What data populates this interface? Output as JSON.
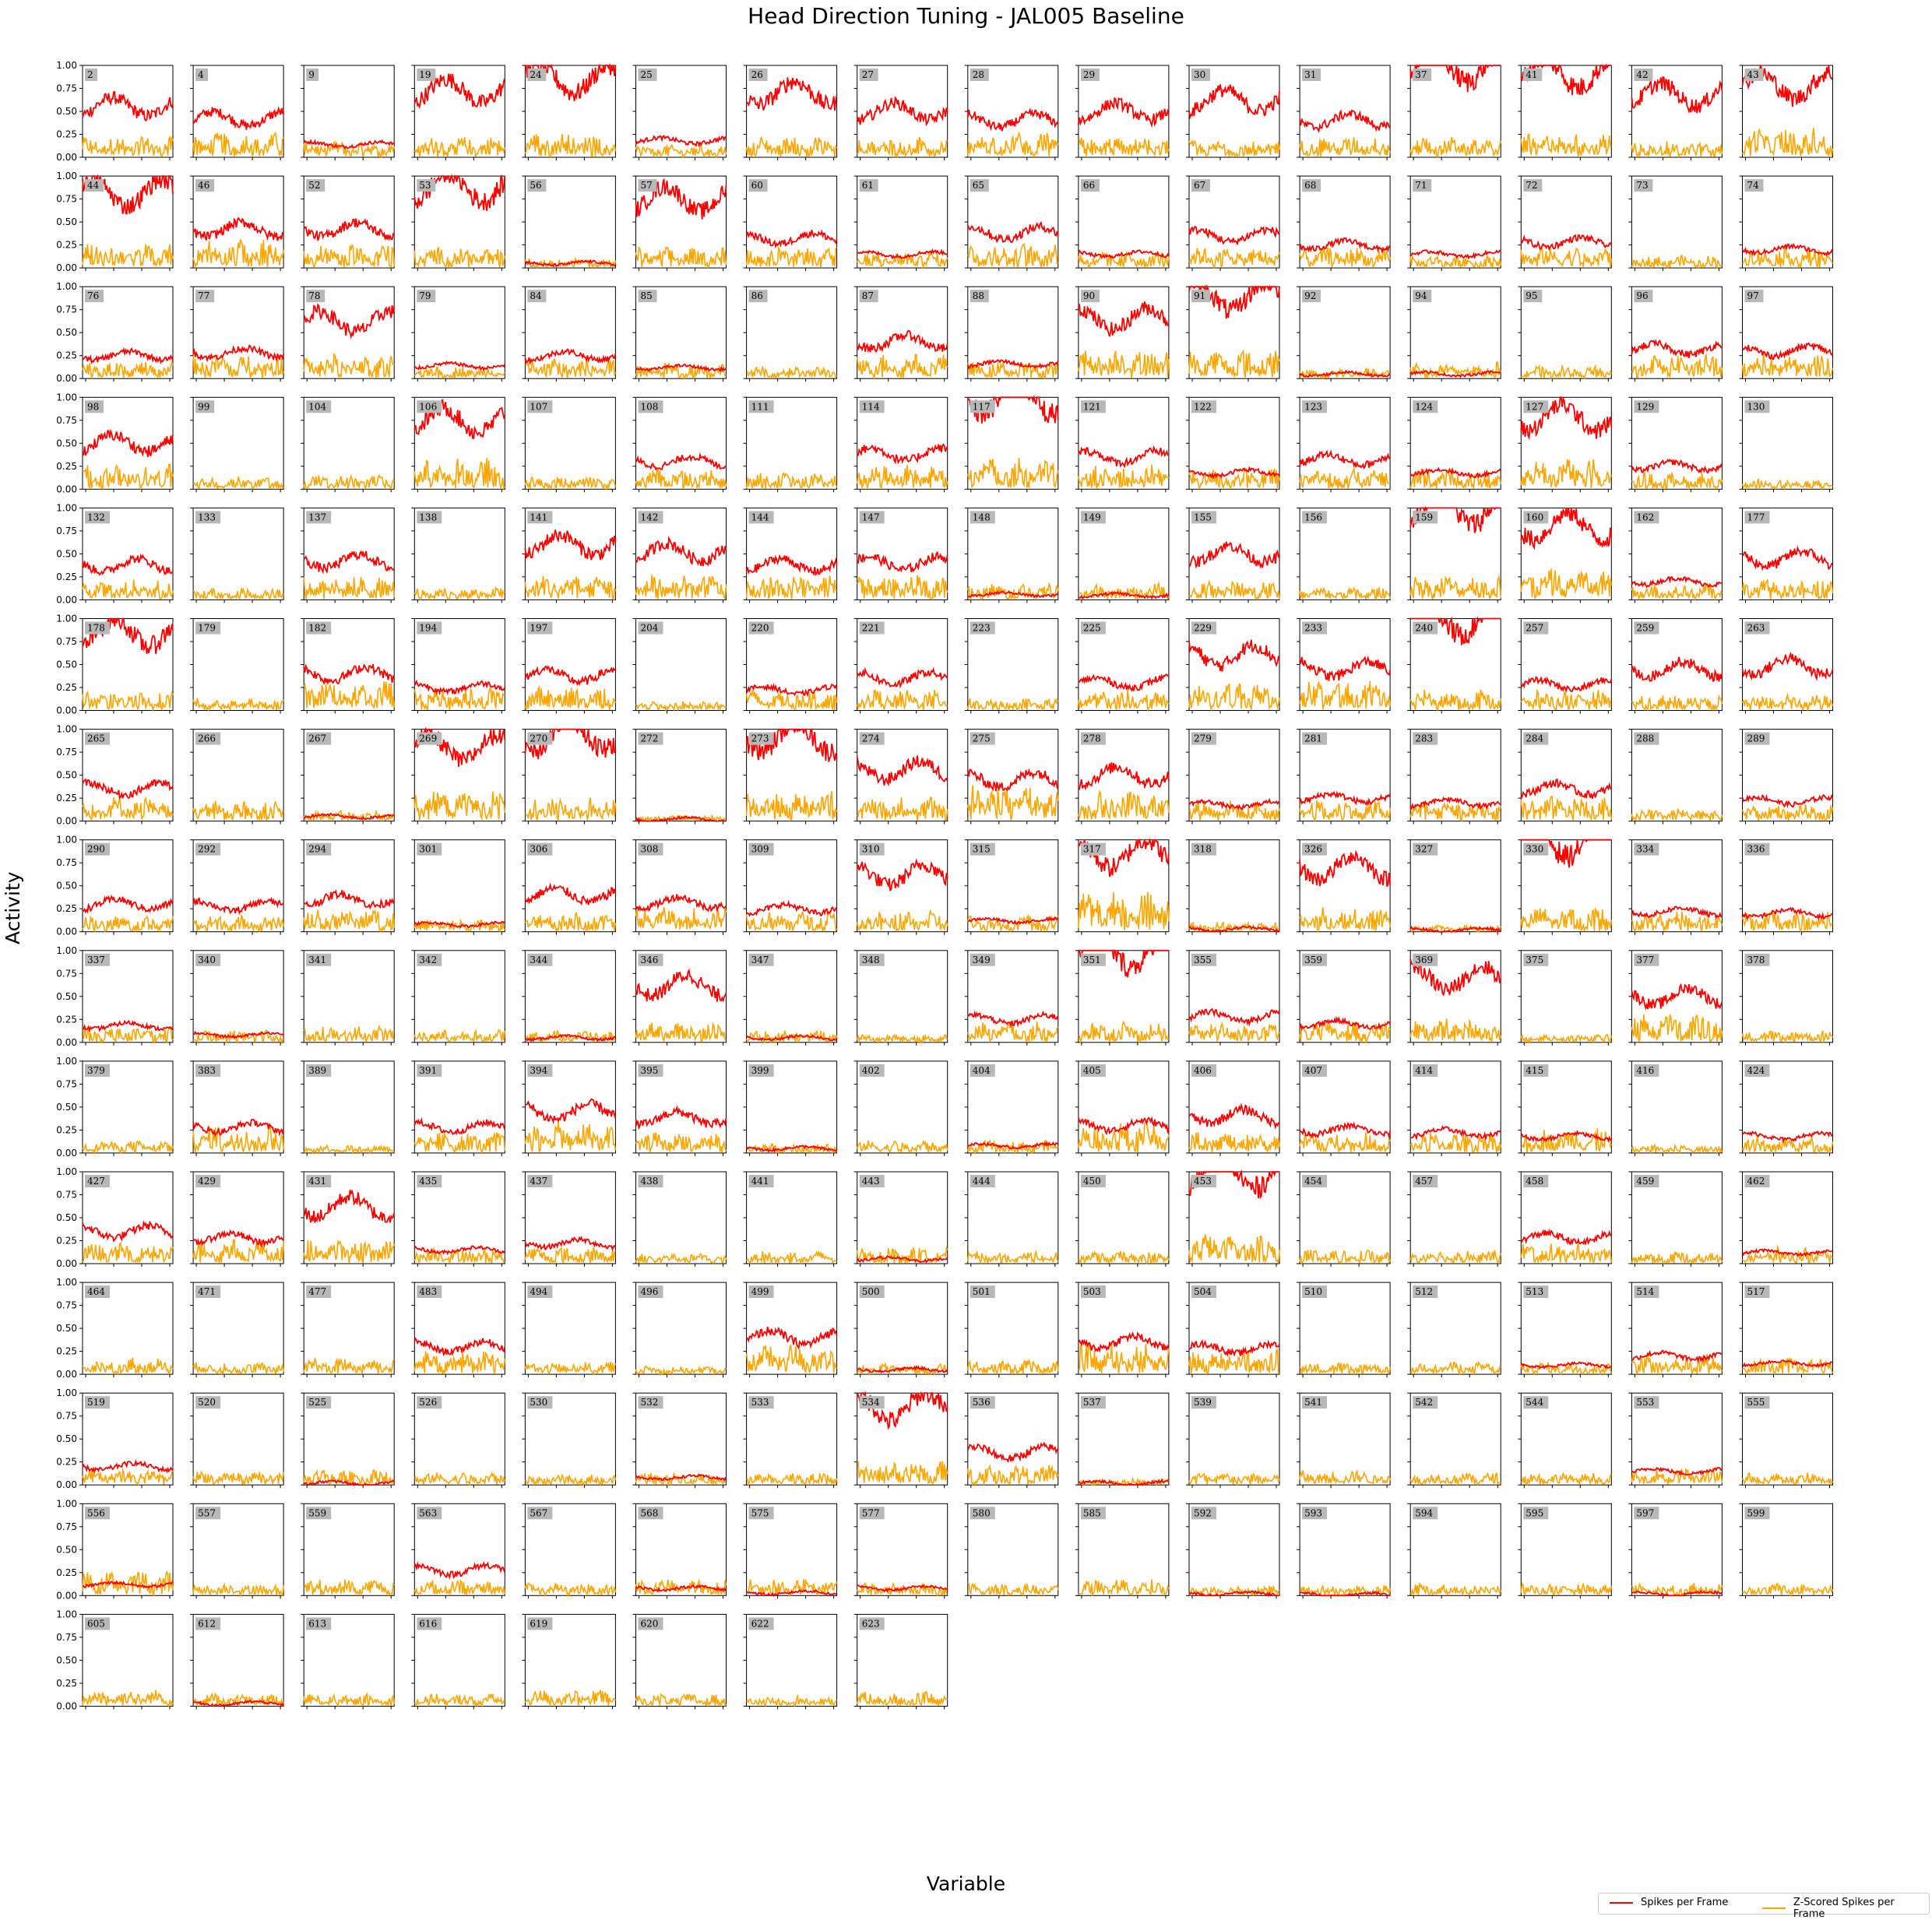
{
  "chart_data": {
    "type": "line",
    "title": "Head Direction Tuning - JAL005 Baseline",
    "xlabel": "Variable",
    "ylabel": "Activity",
    "ylim": [
      0,
      1
    ],
    "yticks": [
      "0.00",
      "0.25",
      "0.50",
      "0.75",
      "1.00"
    ],
    "grid": false,
    "legend_position": "bottom-right",
    "series": [
      {
        "name": "Spikes per Frame",
        "color": "#ff0000"
      },
      {
        "name": "Z-Scored Spikes per Frame",
        "color": "#ffa500"
      }
    ],
    "neurons": [
      {
        "id": "2",
        "red": 0.55,
        "orange": 0.1
      },
      {
        "id": "4",
        "red": 0.42,
        "orange": 0.12
      },
      {
        "id": "9",
        "red": 0.14,
        "orange": 0.08
      },
      {
        "id": "19",
        "red": 0.72,
        "orange": 0.1
      },
      {
        "id": "24",
        "red": 0.85,
        "orange": 0.12
      },
      {
        "id": "25",
        "red": 0.18,
        "orange": 0.06
      },
      {
        "id": "26",
        "red": 0.7,
        "orange": 0.1
      },
      {
        "id": "27",
        "red": 0.5,
        "orange": 0.1
      },
      {
        "id": "28",
        "red": 0.4,
        "orange": 0.12
      },
      {
        "id": "29",
        "red": 0.5,
        "orange": 0.1
      },
      {
        "id": "30",
        "red": 0.62,
        "orange": 0.08
      },
      {
        "id": "31",
        "red": 0.4,
        "orange": 0.1
      },
      {
        "id": "37",
        "red": 1.0,
        "orange": 0.1
      },
      {
        "id": "41",
        "red": 0.92,
        "orange": 0.12
      },
      {
        "id": "42",
        "red": 0.68,
        "orange": 0.08
      },
      {
        "id": "43",
        "red": 0.78,
        "orange": 0.14
      },
      {
        "id": "44",
        "red": 0.82,
        "orange": 0.12
      },
      {
        "id": "46",
        "red": 0.42,
        "orange": 0.14
      },
      {
        "id": "52",
        "red": 0.42,
        "orange": 0.12
      },
      {
        "id": "53",
        "red": 0.88,
        "orange": 0.1
      },
      {
        "id": "56",
        "red": 0.05,
        "orange": 0.05
      },
      {
        "id": "57",
        "red": 0.75,
        "orange": 0.1
      },
      {
        "id": "60",
        "red": 0.32,
        "orange": 0.1
      },
      {
        "id": "61",
        "red": 0.15,
        "orange": 0.08
      },
      {
        "id": "65",
        "red": 0.38,
        "orange": 0.12
      },
      {
        "id": "66",
        "red": 0.15,
        "orange": 0.08
      },
      {
        "id": "67",
        "red": 0.35,
        "orange": 0.1
      },
      {
        "id": "68",
        "red": 0.25,
        "orange": 0.1
      },
      {
        "id": "71",
        "red": 0.15,
        "orange": 0.06
      },
      {
        "id": "72",
        "red": 0.28,
        "orange": 0.1
      },
      {
        "id": "73",
        "red": 0.0,
        "orange": 0.06
      },
      {
        "id": "74",
        "red": 0.2,
        "orange": 0.1
      },
      {
        "id": "76",
        "red": 0.25,
        "orange": 0.08
      },
      {
        "id": "77",
        "red": 0.28,
        "orange": 0.12
      },
      {
        "id": "78",
        "red": 0.62,
        "orange": 0.12
      },
      {
        "id": "79",
        "red": 0.14,
        "orange": 0.06
      },
      {
        "id": "84",
        "red": 0.25,
        "orange": 0.1
      },
      {
        "id": "85",
        "red": 0.12,
        "orange": 0.08
      },
      {
        "id": "86",
        "red": 0.0,
        "orange": 0.06
      },
      {
        "id": "87",
        "red": 0.4,
        "orange": 0.12
      },
      {
        "id": "88",
        "red": 0.16,
        "orange": 0.08
      },
      {
        "id": "90",
        "red": 0.65,
        "orange": 0.15
      },
      {
        "id": "91",
        "red": 0.9,
        "orange": 0.14
      },
      {
        "id": "92",
        "red": 0.05,
        "orange": 0.05
      },
      {
        "id": "94",
        "red": 0.05,
        "orange": 0.08
      },
      {
        "id": "95",
        "red": 0.0,
        "orange": 0.06
      },
      {
        "id": "96",
        "red": 0.32,
        "orange": 0.12
      },
      {
        "id": "97",
        "red": 0.3,
        "orange": 0.12
      },
      {
        "id": "98",
        "red": 0.5,
        "orange": 0.12
      },
      {
        "id": "99",
        "red": 0.0,
        "orange": 0.06
      },
      {
        "id": "104",
        "red": 0.0,
        "orange": 0.07
      },
      {
        "id": "106",
        "red": 0.75,
        "orange": 0.15
      },
      {
        "id": "107",
        "red": 0.0,
        "orange": 0.06
      },
      {
        "id": "108",
        "red": 0.3,
        "orange": 0.1
      },
      {
        "id": "111",
        "red": 0.0,
        "orange": 0.08
      },
      {
        "id": "114",
        "red": 0.38,
        "orange": 0.12
      },
      {
        "id": "117",
        "red": 1.0,
        "orange": 0.15
      },
      {
        "id": "121",
        "red": 0.35,
        "orange": 0.12
      },
      {
        "id": "122",
        "red": 0.18,
        "orange": 0.1
      },
      {
        "id": "123",
        "red": 0.32,
        "orange": 0.1
      },
      {
        "id": "124",
        "red": 0.18,
        "orange": 0.1
      },
      {
        "id": "127",
        "red": 0.78,
        "orange": 0.15
      },
      {
        "id": "129",
        "red": 0.25,
        "orange": 0.08
      },
      {
        "id": "130",
        "red": 0.0,
        "orange": 0.05
      },
      {
        "id": "132",
        "red": 0.38,
        "orange": 0.1
      },
      {
        "id": "133",
        "red": 0.0,
        "orange": 0.06
      },
      {
        "id": "137",
        "red": 0.42,
        "orange": 0.12
      },
      {
        "id": "138",
        "red": 0.0,
        "orange": 0.06
      },
      {
        "id": "141",
        "red": 0.6,
        "orange": 0.12
      },
      {
        "id": "142",
        "red": 0.52,
        "orange": 0.12
      },
      {
        "id": "144",
        "red": 0.38,
        "orange": 0.12
      },
      {
        "id": "147",
        "red": 0.4,
        "orange": 0.12
      },
      {
        "id": "148",
        "red": 0.06,
        "orange": 0.08
      },
      {
        "id": "149",
        "red": 0.05,
        "orange": 0.08
      },
      {
        "id": "155",
        "red": 0.5,
        "orange": 0.1
      },
      {
        "id": "156",
        "red": 0.0,
        "orange": 0.06
      },
      {
        "id": "159",
        "red": 1.0,
        "orange": 0.12
      },
      {
        "id": "160",
        "red": 0.8,
        "orange": 0.15
      },
      {
        "id": "162",
        "red": 0.2,
        "orange": 0.08
      },
      {
        "id": "177",
        "red": 0.45,
        "orange": 0.1
      },
      {
        "id": "178",
        "red": 0.85,
        "orange": 0.1
      },
      {
        "id": "179",
        "red": 0.0,
        "orange": 0.06
      },
      {
        "id": "182",
        "red": 0.4,
        "orange": 0.15
      },
      {
        "id": "194",
        "red": 0.25,
        "orange": 0.12
      },
      {
        "id": "197",
        "red": 0.38,
        "orange": 0.12
      },
      {
        "id": "204",
        "red": 0.0,
        "orange": 0.05
      },
      {
        "id": "220",
        "red": 0.22,
        "orange": 0.1
      },
      {
        "id": "221",
        "red": 0.35,
        "orange": 0.1
      },
      {
        "id": "223",
        "red": 0.0,
        "orange": 0.06
      },
      {
        "id": "225",
        "red": 0.3,
        "orange": 0.1
      },
      {
        "id": "229",
        "red": 0.6,
        "orange": 0.14
      },
      {
        "id": "233",
        "red": 0.45,
        "orange": 0.15
      },
      {
        "id": "240",
        "red": 1.0,
        "orange": 0.1
      },
      {
        "id": "257",
        "red": 0.28,
        "orange": 0.1
      },
      {
        "id": "259",
        "red": 0.45,
        "orange": 0.08
      },
      {
        "id": "263",
        "red": 0.48,
        "orange": 0.08
      },
      {
        "id": "265",
        "red": 0.35,
        "orange": 0.12
      },
      {
        "id": "266",
        "red": 0.0,
        "orange": 0.1
      },
      {
        "id": "267",
        "red": 0.05,
        "orange": 0.05
      },
      {
        "id": "269",
        "red": 0.8,
        "orange": 0.15
      },
      {
        "id": "270",
        "red": 0.95,
        "orange": 0.12
      },
      {
        "id": "272",
        "red": 0.02,
        "orange": 0.03
      },
      {
        "id": "273",
        "red": 0.92,
        "orange": 0.15
      },
      {
        "id": "274",
        "red": 0.55,
        "orange": 0.12
      },
      {
        "id": "275",
        "red": 0.45,
        "orange": 0.18
      },
      {
        "id": "278",
        "red": 0.5,
        "orange": 0.15
      },
      {
        "id": "279",
        "red": 0.18,
        "orange": 0.1
      },
      {
        "id": "281",
        "red": 0.25,
        "orange": 0.1
      },
      {
        "id": "283",
        "red": 0.2,
        "orange": 0.1
      },
      {
        "id": "284",
        "red": 0.35,
        "orange": 0.12
      },
      {
        "id": "288",
        "red": 0.0,
        "orange": 0.06
      },
      {
        "id": "289",
        "red": 0.22,
        "orange": 0.08
      },
      {
        "id": "290",
        "red": 0.3,
        "orange": 0.08
      },
      {
        "id": "292",
        "red": 0.28,
        "orange": 0.08
      },
      {
        "id": "294",
        "red": 0.35,
        "orange": 0.12
      },
      {
        "id": "301",
        "red": 0.08,
        "orange": 0.06
      },
      {
        "id": "306",
        "red": 0.4,
        "orange": 0.1
      },
      {
        "id": "308",
        "red": 0.32,
        "orange": 0.12
      },
      {
        "id": "309",
        "red": 0.25,
        "orange": 0.1
      },
      {
        "id": "310",
        "red": 0.62,
        "orange": 0.1
      },
      {
        "id": "315",
        "red": 0.12,
        "orange": 0.08
      },
      {
        "id": "317",
        "red": 0.85,
        "orange": 0.2
      },
      {
        "id": "318",
        "red": 0.03,
        "orange": 0.05
      },
      {
        "id": "326",
        "red": 0.7,
        "orange": 0.12
      },
      {
        "id": "327",
        "red": 0.02,
        "orange": 0.03
      },
      {
        "id": "330",
        "red": 1.0,
        "orange": 0.12
      },
      {
        "id": "334",
        "red": 0.22,
        "orange": 0.1
      },
      {
        "id": "336",
        "red": 0.2,
        "orange": 0.1
      },
      {
        "id": "337",
        "red": 0.18,
        "orange": 0.08
      },
      {
        "id": "340",
        "red": 0.08,
        "orange": 0.06
      },
      {
        "id": "341",
        "red": 0.0,
        "orange": 0.08
      },
      {
        "id": "342",
        "red": 0.0,
        "orange": 0.06
      },
      {
        "id": "344",
        "red": 0.05,
        "orange": 0.06
      },
      {
        "id": "346",
        "red": 0.62,
        "orange": 0.1
      },
      {
        "id": "347",
        "red": 0.05,
        "orange": 0.06
      },
      {
        "id": "348",
        "red": 0.0,
        "orange": 0.04
      },
      {
        "id": "349",
        "red": 0.25,
        "orange": 0.1
      },
      {
        "id": "351",
        "red": 1.0,
        "orange": 0.1
      },
      {
        "id": "355",
        "red": 0.28,
        "orange": 0.1
      },
      {
        "id": "359",
        "red": 0.2,
        "orange": 0.1
      },
      {
        "id": "369",
        "red": 0.7,
        "orange": 0.12
      },
      {
        "id": "375",
        "red": 0.0,
        "orange": 0.04
      },
      {
        "id": "377",
        "red": 0.5,
        "orange": 0.14
      },
      {
        "id": "378",
        "red": 0.0,
        "orange": 0.06
      },
      {
        "id": "379",
        "red": 0.0,
        "orange": 0.06
      },
      {
        "id": "383",
        "red": 0.28,
        "orange": 0.14
      },
      {
        "id": "389",
        "red": 0.0,
        "orange": 0.04
      },
      {
        "id": "391",
        "red": 0.28,
        "orange": 0.1
      },
      {
        "id": "394",
        "red": 0.45,
        "orange": 0.15
      },
      {
        "id": "395",
        "red": 0.38,
        "orange": 0.1
      },
      {
        "id": "399",
        "red": 0.05,
        "orange": 0.05
      },
      {
        "id": "402",
        "red": 0.0,
        "orange": 0.06
      },
      {
        "id": "404",
        "red": 0.08,
        "orange": 0.06
      },
      {
        "id": "405",
        "red": 0.3,
        "orange": 0.15
      },
      {
        "id": "406",
        "red": 0.4,
        "orange": 0.1
      },
      {
        "id": "407",
        "red": 0.25,
        "orange": 0.1
      },
      {
        "id": "414",
        "red": 0.22,
        "orange": 0.1
      },
      {
        "id": "415",
        "red": 0.18,
        "orange": 0.12
      },
      {
        "id": "416",
        "red": 0.0,
        "orange": 0.04
      },
      {
        "id": "424",
        "red": 0.18,
        "orange": 0.08
      },
      {
        "id": "427",
        "red": 0.35,
        "orange": 0.1
      },
      {
        "id": "429",
        "red": 0.28,
        "orange": 0.12
      },
      {
        "id": "431",
        "red": 0.62,
        "orange": 0.12
      },
      {
        "id": "435",
        "red": 0.15,
        "orange": 0.08
      },
      {
        "id": "437",
        "red": 0.22,
        "orange": 0.08
      },
      {
        "id": "438",
        "red": 0.0,
        "orange": 0.05
      },
      {
        "id": "441",
        "red": 0.0,
        "orange": 0.06
      },
      {
        "id": "443",
        "red": 0.05,
        "orange": 0.08
      },
      {
        "id": "444",
        "red": 0.0,
        "orange": 0.06
      },
      {
        "id": "450",
        "red": 0.0,
        "orange": 0.06
      },
      {
        "id": "453",
        "red": 1.0,
        "orange": 0.15
      },
      {
        "id": "454",
        "red": 0.0,
        "orange": 0.07
      },
      {
        "id": "457",
        "red": 0.0,
        "orange": 0.07
      },
      {
        "id": "458",
        "red": 0.28,
        "orange": 0.1
      },
      {
        "id": "459",
        "red": 0.0,
        "orange": 0.06
      },
      {
        "id": "462",
        "red": 0.12,
        "orange": 0.08
      },
      {
        "id": "464",
        "red": 0.0,
        "orange": 0.08
      },
      {
        "id": "471",
        "red": 0.0,
        "orange": 0.06
      },
      {
        "id": "477",
        "red": 0.0,
        "orange": 0.08
      },
      {
        "id": "483",
        "red": 0.3,
        "orange": 0.12
      },
      {
        "id": "494",
        "red": 0.0,
        "orange": 0.06
      },
      {
        "id": "496",
        "red": 0.0,
        "orange": 0.04
      },
      {
        "id": "499",
        "red": 0.4,
        "orange": 0.15
      },
      {
        "id": "500",
        "red": 0.05,
        "orange": 0.05
      },
      {
        "id": "501",
        "red": 0.0,
        "orange": 0.07
      },
      {
        "id": "503",
        "red": 0.35,
        "orange": 0.15
      },
      {
        "id": "504",
        "red": 0.28,
        "orange": 0.12
      },
      {
        "id": "510",
        "red": 0.0,
        "orange": 0.06
      },
      {
        "id": "512",
        "red": 0.0,
        "orange": 0.06
      },
      {
        "id": "513",
        "red": 0.1,
        "orange": 0.06
      },
      {
        "id": "514",
        "red": 0.2,
        "orange": 0.1
      },
      {
        "id": "517",
        "red": 0.12,
        "orange": 0.08
      },
      {
        "id": "519",
        "red": 0.2,
        "orange": 0.08
      },
      {
        "id": "520",
        "red": 0.0,
        "orange": 0.07
      },
      {
        "id": "525",
        "red": 0.02,
        "orange": 0.08
      },
      {
        "id": "526",
        "red": 0.0,
        "orange": 0.06
      },
      {
        "id": "530",
        "red": 0.0,
        "orange": 0.05
      },
      {
        "id": "532",
        "red": 0.08,
        "orange": 0.06
      },
      {
        "id": "533",
        "red": 0.0,
        "orange": 0.06
      },
      {
        "id": "534",
        "red": 0.85,
        "orange": 0.12
      },
      {
        "id": "536",
        "red": 0.35,
        "orange": 0.1
      },
      {
        "id": "537",
        "red": 0.02,
        "orange": 0.03
      },
      {
        "id": "539",
        "red": 0.0,
        "orange": 0.06
      },
      {
        "id": "541",
        "red": 0.0,
        "orange": 0.07
      },
      {
        "id": "542",
        "red": 0.0,
        "orange": 0.06
      },
      {
        "id": "544",
        "red": 0.0,
        "orange": 0.06
      },
      {
        "id": "553",
        "red": 0.15,
        "orange": 0.08
      },
      {
        "id": "555",
        "red": 0.0,
        "orange": 0.06
      },
      {
        "id": "556",
        "red": 0.12,
        "orange": 0.12
      },
      {
        "id": "557",
        "red": 0.0,
        "orange": 0.06
      },
      {
        "id": "559",
        "red": 0.0,
        "orange": 0.08
      },
      {
        "id": "563",
        "red": 0.28,
        "orange": 0.08
      },
      {
        "id": "567",
        "red": 0.0,
        "orange": 0.06
      },
      {
        "id": "568",
        "red": 0.08,
        "orange": 0.08
      },
      {
        "id": "575",
        "red": 0.03,
        "orange": 0.08
      },
      {
        "id": "577",
        "red": 0.08,
        "orange": 0.06
      },
      {
        "id": "580",
        "red": 0.0,
        "orange": 0.06
      },
      {
        "id": "585",
        "red": 0.0,
        "orange": 0.08
      },
      {
        "id": "592",
        "red": 0.02,
        "orange": 0.05
      },
      {
        "id": "593",
        "red": 0.01,
        "orange": 0.05
      },
      {
        "id": "594",
        "red": 0.0,
        "orange": 0.06
      },
      {
        "id": "595",
        "red": 0.0,
        "orange": 0.06
      },
      {
        "id": "597",
        "red": 0.02,
        "orange": 0.06
      },
      {
        "id": "599",
        "red": 0.0,
        "orange": 0.06
      },
      {
        "id": "605",
        "red": 0.0,
        "orange": 0.08
      },
      {
        "id": "612",
        "red": 0.03,
        "orange": 0.06
      },
      {
        "id": "613",
        "red": 0.0,
        "orange": 0.06
      },
      {
        "id": "616",
        "red": 0.0,
        "orange": 0.06
      },
      {
        "id": "619",
        "red": 0.0,
        "orange": 0.08
      },
      {
        "id": "620",
        "red": 0.0,
        "orange": 0.06
      },
      {
        "id": "622",
        "red": 0.0,
        "orange": 0.05
      },
      {
        "id": "623",
        "red": 0.0,
        "orange": 0.07
      }
    ]
  }
}
